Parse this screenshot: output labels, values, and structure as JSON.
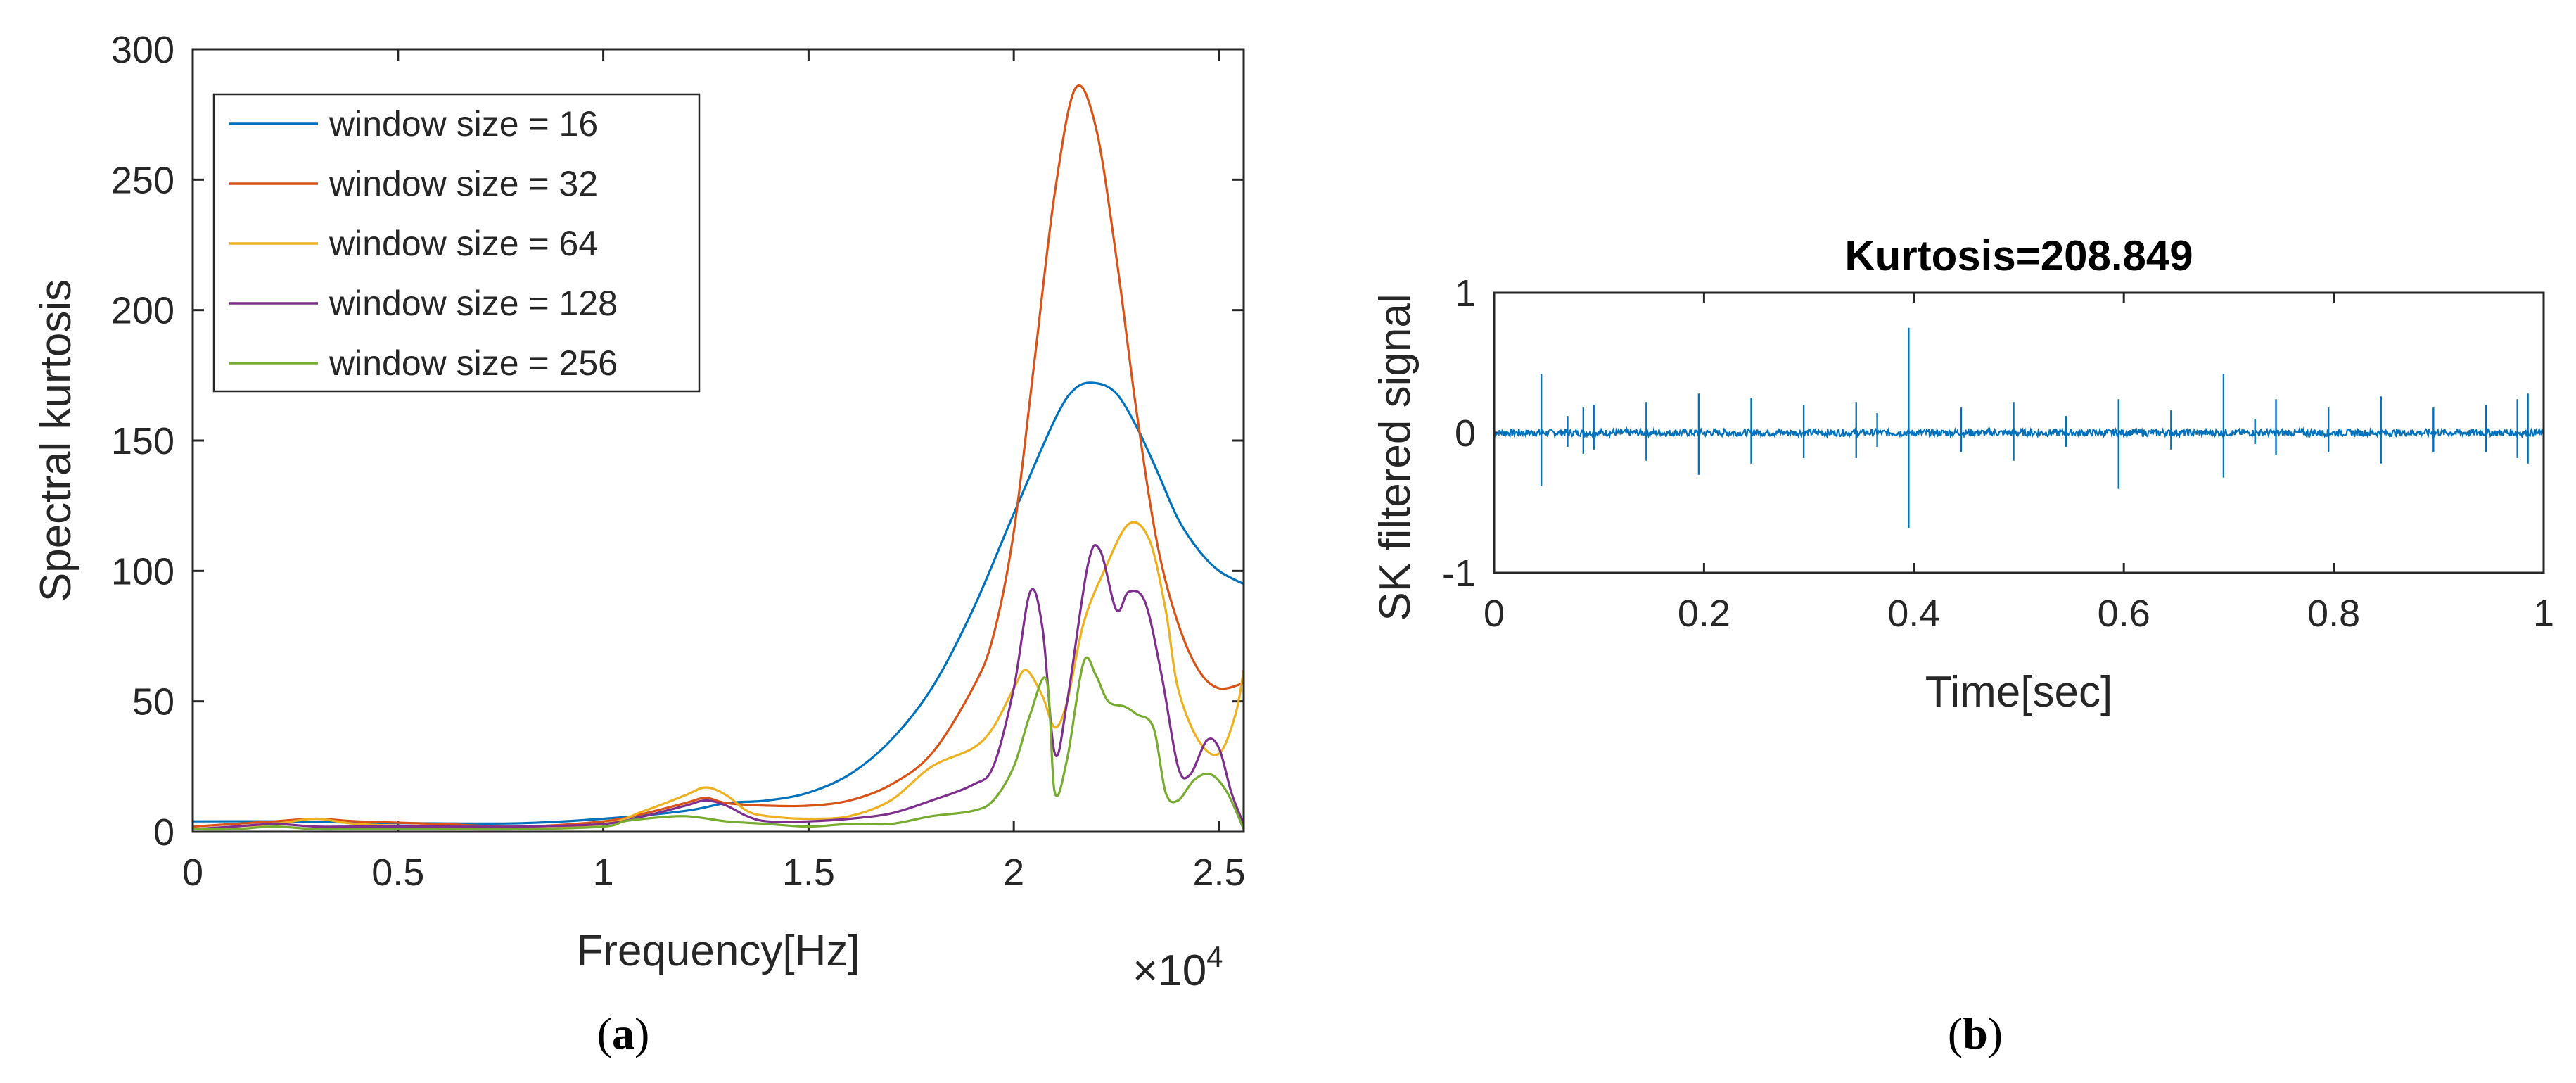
{
  "chart_data": [
    {
      "type": "line",
      "panel_label": {
        "open": "(",
        "letter": "a",
        "close": ")"
      },
      "title": "",
      "xlabel": "Frequency[Hz]",
      "ylabel": "Spectral kurtosis",
      "x_multiplier": {
        "base": "×10",
        "exp": "4"
      },
      "xlim": [
        0,
        25600
      ],
      "ylim": [
        0,
        300
      ],
      "xticks": [
        0,
        5000,
        10000,
        15000,
        20000,
        25000
      ],
      "xtick_labels": [
        "0",
        "0.5",
        "1",
        "1.5",
        "2",
        "2.5"
      ],
      "yticks": [
        0,
        50,
        100,
        150,
        200,
        250,
        300
      ],
      "ytick_labels": [
        "0",
        "50",
        "100",
        "150",
        "200",
        "250",
        "300"
      ],
      "legend_position": "top-left",
      "series": [
        {
          "name": "window size = 16",
          "color": "#0072BD",
          "points": [
            [
              0,
              4
            ],
            [
              2000,
              4
            ],
            [
              4000,
              3.5
            ],
            [
              6000,
              3.2
            ],
            [
              8000,
              3.3
            ],
            [
              10000,
              5
            ],
            [
              12000,
              8
            ],
            [
              13000,
              11
            ],
            [
              14000,
              12
            ],
            [
              15000,
              15
            ],
            [
              16000,
              22
            ],
            [
              17000,
              35
            ],
            [
              18000,
              55
            ],
            [
              19000,
              85
            ],
            [
              20000,
              122
            ],
            [
              21000,
              158
            ],
            [
              21500,
              170
            ],
            [
              22000,
              172
            ],
            [
              22500,
              168
            ],
            [
              23000,
              155
            ],
            [
              23500,
              138
            ],
            [
              24000,
              120
            ],
            [
              24500,
              108
            ],
            [
              25000,
              100
            ],
            [
              25600,
              95
            ]
          ]
        },
        {
          "name": "window size = 32",
          "color": "#D95319",
          "points": [
            [
              0,
              2
            ],
            [
              1000,
              3
            ],
            [
              2000,
              4
            ],
            [
              3000,
              5
            ],
            [
              4000,
              4
            ],
            [
              6000,
              3
            ],
            [
              8000,
              2
            ],
            [
              10000,
              4
            ],
            [
              11000,
              7
            ],
            [
              12000,
              11
            ],
            [
              12500,
              13
            ],
            [
              13000,
              11
            ],
            [
              14000,
              10
            ],
            [
              15000,
              10
            ],
            [
              16000,
              12
            ],
            [
              17000,
              18
            ],
            [
              18000,
              30
            ],
            [
              19000,
              55
            ],
            [
              19500,
              75
            ],
            [
              20000,
              115
            ],
            [
              20500,
              180
            ],
            [
              21000,
              245
            ],
            [
              21500,
              285
            ],
            [
              22000,
              270
            ],
            [
              22500,
              220
            ],
            [
              23000,
              160
            ],
            [
              23500,
              110
            ],
            [
              24000,
              80
            ],
            [
              24500,
              62
            ],
            [
              25000,
              55
            ],
            [
              25600,
              57
            ]
          ]
        },
        {
          "name": "window size = 64",
          "color": "#EDB120",
          "points": [
            [
              0,
              1
            ],
            [
              1000,
              2
            ],
            [
              2000,
              3
            ],
            [
              3000,
              5
            ],
            [
              4000,
              3
            ],
            [
              6000,
              2
            ],
            [
              8000,
              2
            ],
            [
              10000,
              3
            ],
            [
              11000,
              8
            ],
            [
              12000,
              14
            ],
            [
              12500,
              17
            ],
            [
              13000,
              14
            ],
            [
              13500,
              8
            ],
            [
              14000,
              6
            ],
            [
              15000,
              5
            ],
            [
              16000,
              6
            ],
            [
              17000,
              12
            ],
            [
              18000,
              25
            ],
            [
              19000,
              32
            ],
            [
              19500,
              40
            ],
            [
              20000,
              55
            ],
            [
              20300,
              62
            ],
            [
              20700,
              52
            ],
            [
              21000,
              40
            ],
            [
              21300,
              50
            ],
            [
              21700,
              80
            ],
            [
              22200,
              100
            ],
            [
              22800,
              118
            ],
            [
              23300,
              112
            ],
            [
              23700,
              85
            ],
            [
              24000,
              55
            ],
            [
              24500,
              35
            ],
            [
              25000,
              30
            ],
            [
              25400,
              45
            ],
            [
              25600,
              62
            ]
          ]
        },
        {
          "name": "window size = 128",
          "color": "#7E2F8E",
          "points": [
            [
              0,
              1
            ],
            [
              1000,
              2
            ],
            [
              2000,
              3
            ],
            [
              3000,
              2
            ],
            [
              4000,
              2
            ],
            [
              6000,
              2
            ],
            [
              8000,
              2
            ],
            [
              10000,
              3
            ],
            [
              11000,
              6
            ],
            [
              12000,
              10
            ],
            [
              12500,
              12
            ],
            [
              13000,
              10
            ],
            [
              13500,
              6
            ],
            [
              14000,
              4
            ],
            [
              15000,
              4
            ],
            [
              16000,
              5
            ],
            [
              17000,
              7
            ],
            [
              18000,
              12
            ],
            [
              19000,
              18
            ],
            [
              19500,
              25
            ],
            [
              20000,
              55
            ],
            [
              20400,
              92
            ],
            [
              20700,
              78
            ],
            [
              21000,
              30
            ],
            [
              21300,
              50
            ],
            [
              21800,
              102
            ],
            [
              22100,
              108
            ],
            [
              22500,
              85
            ],
            [
              22800,
              92
            ],
            [
              23200,
              88
            ],
            [
              23600,
              60
            ],
            [
              24000,
              25
            ],
            [
              24300,
              22
            ],
            [
              24700,
              35
            ],
            [
              25000,
              32
            ],
            [
              25300,
              15
            ],
            [
              25600,
              3
            ]
          ]
        },
        {
          "name": "window size = 256",
          "color": "#77AC30",
          "points": [
            [
              0,
              1
            ],
            [
              1000,
              1
            ],
            [
              2000,
              2
            ],
            [
              3000,
              1
            ],
            [
              4000,
              1
            ],
            [
              6000,
              1
            ],
            [
              8000,
              1
            ],
            [
              10000,
              2
            ],
            [
              10500,
              4
            ],
            [
              11000,
              5
            ],
            [
              12000,
              6
            ],
            [
              13000,
              4
            ],
            [
              14000,
              3
            ],
            [
              15000,
              2
            ],
            [
              16000,
              3
            ],
            [
              17000,
              3
            ],
            [
              18000,
              6
            ],
            [
              19000,
              8
            ],
            [
              19500,
              12
            ],
            [
              20000,
              25
            ],
            [
              20400,
              45
            ],
            [
              20800,
              58
            ],
            [
              21000,
              15
            ],
            [
              21300,
              28
            ],
            [
              21700,
              65
            ],
            [
              22000,
              60
            ],
            [
              22300,
              50
            ],
            [
              22700,
              48
            ],
            [
              23000,
              45
            ],
            [
              23400,
              40
            ],
            [
              23700,
              15
            ],
            [
              24000,
              12
            ],
            [
              24400,
              20
            ],
            [
              24800,
              22
            ],
            [
              25200,
              15
            ],
            [
              25600,
              1
            ]
          ]
        }
      ]
    },
    {
      "type": "line",
      "panel_label": {
        "open": "(",
        "letter": "b",
        "close": ")"
      },
      "title": "Kurtosis=208.849",
      "xlabel": "Time[sec]",
      "ylabel": "SK filtered signal",
      "xlim": [
        0,
        1
      ],
      "ylim": [
        -1,
        1
      ],
      "xticks": [
        0,
        0.2,
        0.4,
        0.6,
        0.8,
        1
      ],
      "xtick_labels": [
        "0",
        "0.2",
        "0.4",
        "0.6",
        "0.8",
        "1"
      ],
      "yticks": [
        -1,
        0,
        1
      ],
      "ytick_labels": [
        "-1",
        "0",
        "1"
      ],
      "series": [
        {
          "name": "SK filtered signal",
          "color": "#0072BD",
          "impulses": [
            [
              0.045,
              0.42,
              -0.38
            ],
            [
              0.07,
              0.12,
              -0.1
            ],
            [
              0.085,
              0.18,
              -0.15
            ],
            [
              0.095,
              0.2,
              -0.12
            ],
            [
              0.145,
              0.22,
              -0.2
            ],
            [
              0.195,
              0.28,
              -0.3
            ],
            [
              0.245,
              0.25,
              -0.22
            ],
            [
              0.295,
              0.2,
              -0.18
            ],
            [
              0.345,
              0.22,
              -0.18
            ],
            [
              0.365,
              0.14,
              -0.1
            ],
            [
              0.395,
              0.75,
              -0.68
            ],
            [
              0.445,
              0.18,
              -0.14
            ],
            [
              0.495,
              0.22,
              -0.2
            ],
            [
              0.545,
              0.12,
              -0.1
            ],
            [
              0.595,
              0.24,
              -0.4
            ],
            [
              0.645,
              0.16,
              -0.12
            ],
            [
              0.695,
              0.42,
              -0.32
            ],
            [
              0.725,
              0.1,
              -0.08
            ],
            [
              0.745,
              0.24,
              -0.16
            ],
            [
              0.795,
              0.18,
              -0.14
            ],
            [
              0.845,
              0.26,
              -0.22
            ],
            [
              0.895,
              0.18,
              -0.14
            ],
            [
              0.945,
              0.2,
              -0.14
            ],
            [
              0.975,
              0.24,
              -0.18
            ],
            [
              0.985,
              0.28,
              -0.22
            ]
          ]
        }
      ]
    }
  ]
}
